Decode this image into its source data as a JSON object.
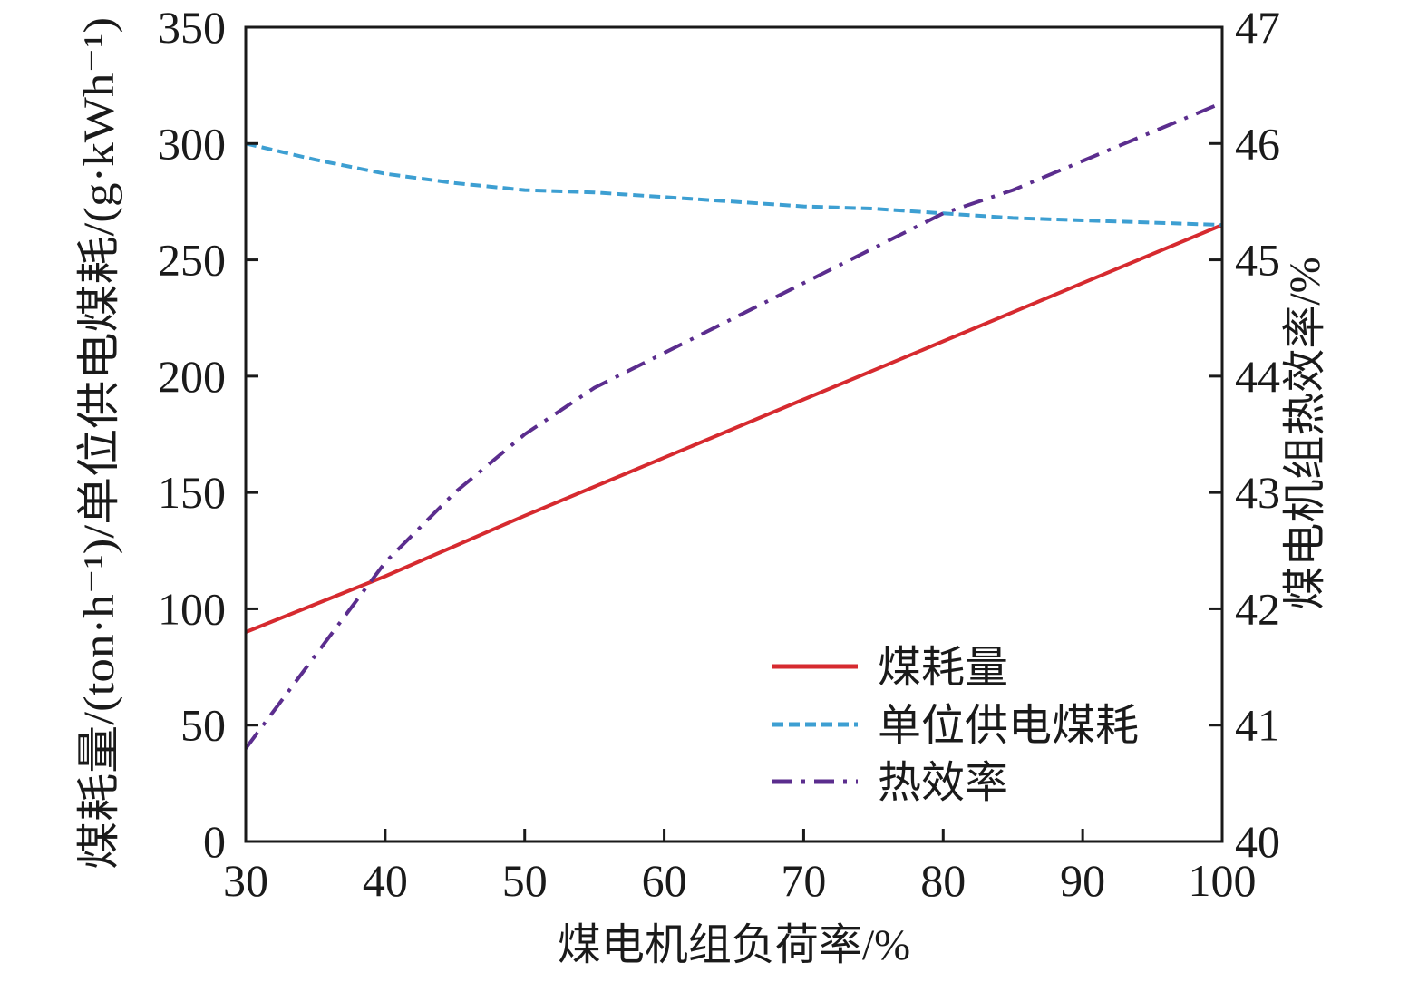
{
  "chart_data": {
    "type": "line",
    "xlabel": "煤电机组负荷率/%",
    "ylabel_left": "煤耗量/(ton·h⁻¹)/单位供电煤耗/(g·kWh⁻¹)",
    "ylabel_right": "煤电机组热效率/%",
    "xlim": [
      30,
      100
    ],
    "ylim_left": [
      0,
      350
    ],
    "ylim_right": [
      40,
      47
    ],
    "x_ticks": [
      "30",
      "40",
      "50",
      "60",
      "70",
      "80",
      "90",
      "100"
    ],
    "y_left_ticks": [
      "0",
      "50",
      "100",
      "150",
      "200",
      "250",
      "300",
      "350"
    ],
    "y_right_ticks": [
      "40",
      "41",
      "42",
      "43",
      "44",
      "45",
      "46",
      "47"
    ],
    "grid": false,
    "legend_position": "lower-right",
    "series": [
      {
        "name": "煤耗量",
        "axis": "left",
        "color": "#d62a2f",
        "dash": "solid",
        "x": [
          30,
          40,
          50,
          60,
          70,
          80,
          90,
          100
        ],
        "y": [
          90,
          114,
          140,
          165,
          190,
          215,
          240,
          265
        ]
      },
      {
        "name": "单位供电煤耗",
        "axis": "left",
        "color": "#3d9fd2",
        "dash": "dashed",
        "x": [
          30,
          35,
          40,
          45,
          50,
          55,
          60,
          65,
          70,
          75,
          80,
          85,
          90,
          95,
          100
        ],
        "y": [
          300,
          293,
          287,
          283,
          280,
          279,
          277,
          275,
          273,
          272,
          270,
          268,
          267,
          266,
          265
        ]
      },
      {
        "name": "热效率",
        "axis": "right",
        "color": "#5b2d8e",
        "dash": "dashdot",
        "x": [
          30,
          35,
          40,
          45,
          50,
          55,
          60,
          65,
          70,
          75,
          80,
          85,
          90,
          95,
          100
        ],
        "y": [
          40.8,
          41.6,
          42.4,
          43.0,
          43.5,
          43.9,
          44.2,
          44.5,
          44.8,
          45.1,
          45.4,
          45.6,
          45.85,
          46.1,
          46.35
        ]
      }
    ]
  }
}
